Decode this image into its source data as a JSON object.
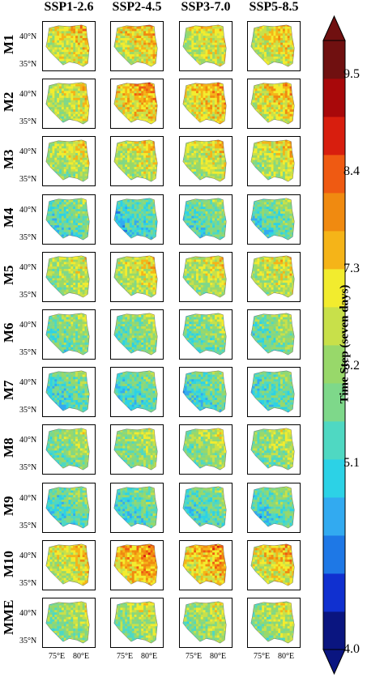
{
  "chart_data": {
    "type": "heatmap",
    "title": "",
    "scenarios": [
      "SSP1-2.6",
      "SSP2-4.5",
      "SSP3-7.0",
      "SSP5-8.5"
    ],
    "models": [
      "M1",
      "M2",
      "M3",
      "M4",
      "M5",
      "M6",
      "M7",
      "M8",
      "M9",
      "M10",
      "MME"
    ],
    "lat_ticks": [
      "40°N",
      "35°N"
    ],
    "lon_ticks": [
      "75°E",
      "80°E"
    ],
    "colorbar": {
      "label": "Time Step (seven days)",
      "min": 4.0,
      "max": 9.5,
      "tick_values": [
        "9.5",
        "8.4",
        "7.3",
        "6.2",
        "5.1",
        "4.0"
      ],
      "extend": "both",
      "colors": [
        "#0a1580",
        "#1030d0",
        "#1e78e6",
        "#32aaf0",
        "#2cd2e6",
        "#4fd8c2",
        "#7ed88a",
        "#98d86a",
        "#c8e04a",
        "#f2ec2e",
        "#f5b418",
        "#f08a10",
        "#ef5a12",
        "#d81e0e",
        "#a8080a",
        "#701010"
      ]
    },
    "panel_mean_values": [
      [
        7.1,
        7.2,
        7.0,
        7.1
      ],
      [
        6.9,
        7.4,
        7.3,
        7.2
      ],
      [
        6.8,
        6.9,
        6.9,
        6.9
      ],
      [
        6.1,
        5.8,
        6.1,
        6.1
      ],
      [
        6.7,
        6.9,
        6.8,
        6.9
      ],
      [
        6.3,
        6.3,
        6.3,
        6.3
      ],
      [
        6.0,
        6.0,
        6.0,
        6.0
      ],
      [
        6.4,
        6.5,
        6.5,
        6.5
      ],
      [
        6.0,
        6.0,
        6.0,
        6.0
      ],
      [
        7.0,
        7.6,
        7.5,
        7.2
      ],
      [
        6.5,
        6.6,
        6.6,
        6.6
      ]
    ]
  }
}
